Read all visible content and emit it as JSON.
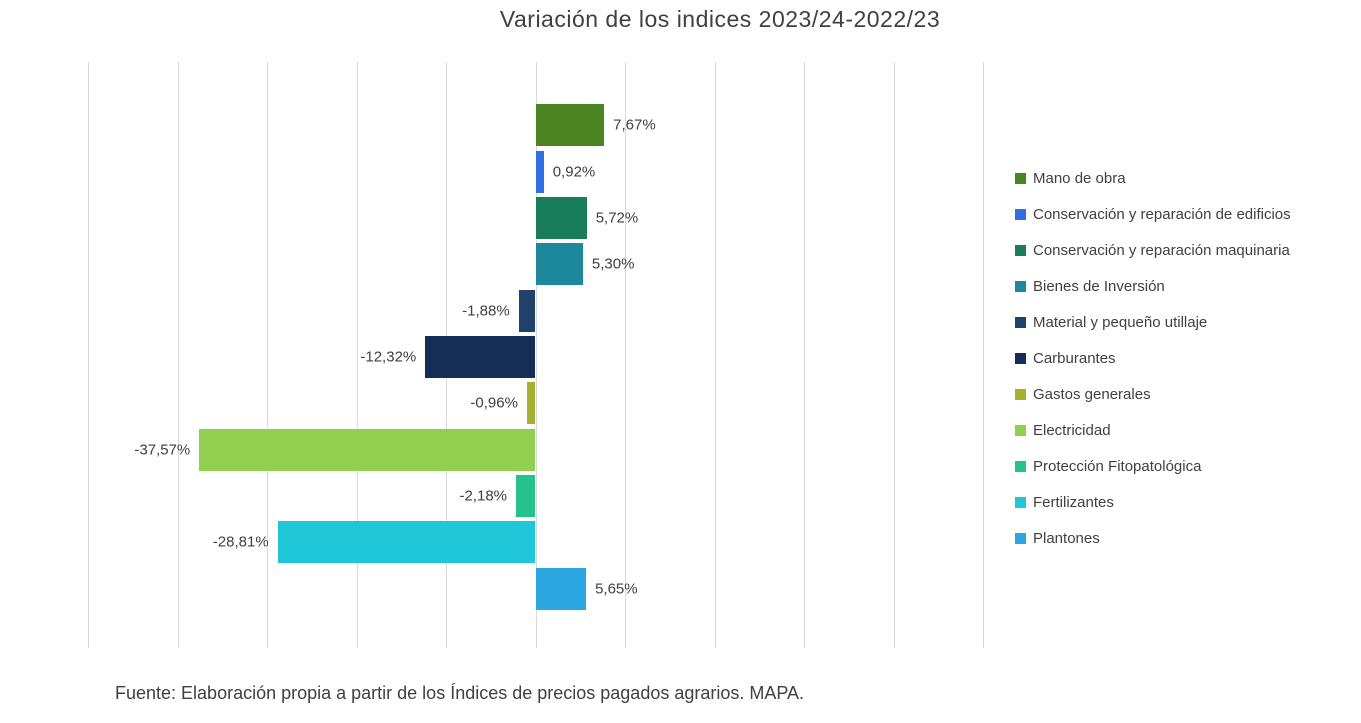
{
  "title": "Variación de los indices 2023/24-2022/23",
  "footer": "Fuente: Elaboración propia a partir de los Índices de precios pagados agrarios. MAPA.",
  "colors": {
    "grid": "#d9d9d9",
    "text": "#404040"
  },
  "chart_data": {
    "type": "bar",
    "orientation": "horizontal",
    "title": "Variación de los indices 2023/24-2022/23",
    "xlabel": "",
    "ylabel": "",
    "xlim": [
      -50,
      50
    ],
    "gridline_step": 10,
    "grid": true,
    "legend_position": "right",
    "categories": [
      "Mano de obra",
      "Conservación y reparación de edificios",
      "Conservación y reparación maquinaria",
      "Bienes de Inversión",
      "Material y pequeño utillaje",
      "Carburantes",
      "Gastos generales",
      "Electricidad",
      "Protección Fitopatológica",
      "Fertilizantes",
      "Plantones"
    ],
    "values": [
      7.67,
      0.92,
      5.72,
      5.3,
      -1.88,
      -12.32,
      -0.96,
      -37.57,
      -2.18,
      -28.81,
      5.65
    ],
    "labels": [
      "7,67%",
      "0,92%",
      "5,72%",
      "5,30%",
      "-1,88%",
      "-12,32%",
      "-0,96%",
      "-37,57%",
      "-2,18%",
      "-28,81%",
      "5,65%"
    ],
    "bar_colors": [
      "#4a8522",
      "#2f6fe0",
      "#177d5b",
      "#1d879c",
      "#1e4269",
      "#142e55",
      "#a6b02f",
      "#90d04e",
      "#26c28c",
      "#1ec6d8",
      "#2ba6e0"
    ]
  }
}
